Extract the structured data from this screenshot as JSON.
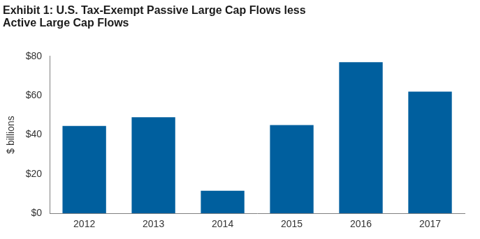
{
  "chart_data": {
    "type": "bar",
    "title": [
      "Exhibit 1: U.S. Tax-Exempt Passive Large Cap Flows less",
      "Active Large Cap Flows"
    ],
    "y_label": "$ billions",
    "categories": [
      "2012",
      "2013",
      "2014",
      "2015",
      "2016",
      "2017"
    ],
    "values": [
      44.5,
      49,
      11.5,
      45,
      77,
      62
    ],
    "color": "#005f9e",
    "ylim": [
      0,
      80
    ],
    "yticks": [
      {
        "value": 0,
        "label": "$0"
      },
      {
        "value": 20,
        "label": "$20"
      },
      {
        "value": 40,
        "label": "$40"
      },
      {
        "value": 60,
        "label": "$60"
      },
      {
        "value": 80,
        "label": "$80"
      }
    ],
    "grid": false
  }
}
